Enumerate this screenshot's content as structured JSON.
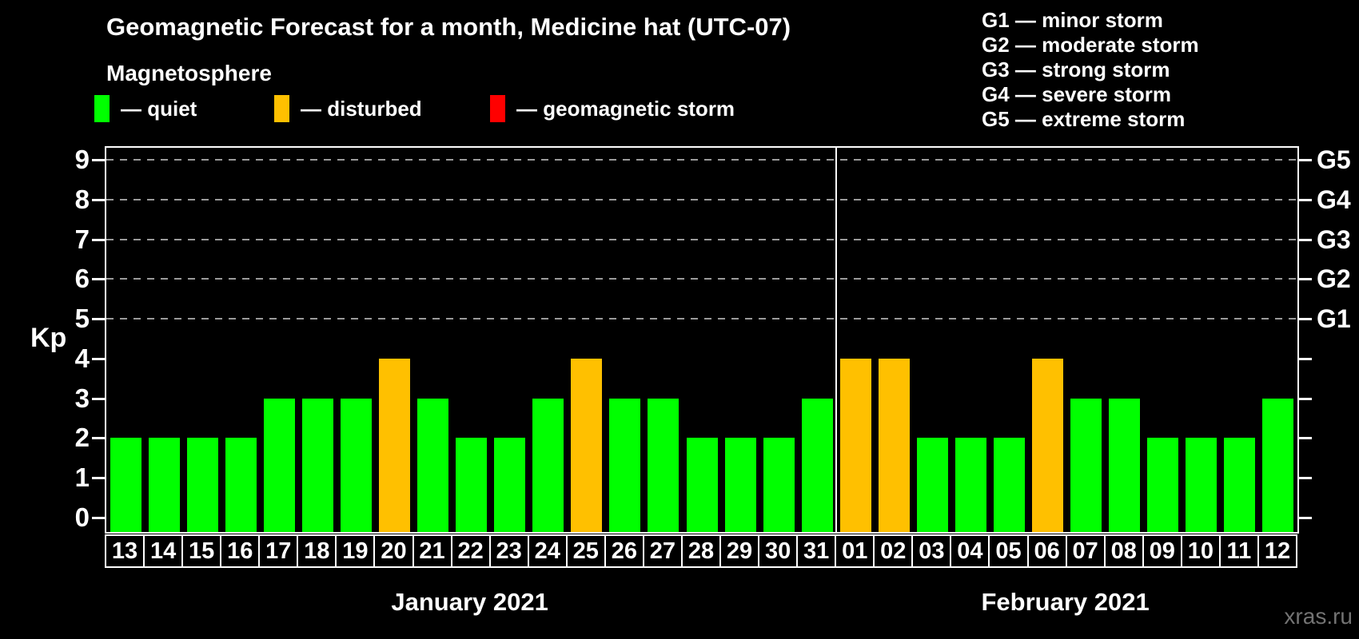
{
  "title": "Geomagnetic Forecast for a month, Medicine hat (UTC-07)",
  "subtitle": "Magnetosphere",
  "legend": {
    "items": [
      {
        "key": "quiet",
        "label": "— quiet",
        "color": "#00ff00"
      },
      {
        "key": "disturbed",
        "label": "— disturbed",
        "color": "#ffc000"
      },
      {
        "key": "storm",
        "label": "— geomagnetic storm",
        "color": "#ff0000"
      }
    ]
  },
  "g_legend": {
    "lines": [
      "G1 — minor storm",
      "G2 — moderate storm",
      "G3 — strong storm",
      "G4 — severe storm",
      "G5 — extreme storm"
    ]
  },
  "watermark": "xras.ru",
  "chart_data": {
    "type": "bar",
    "title": "Geomagnetic Forecast for a month, Medicine hat (UTC-07)",
    "ylabel": "Kp",
    "ylim": [
      0,
      9
    ],
    "y_ticks": [
      0,
      1,
      2,
      3,
      4,
      5,
      6,
      7,
      8,
      9
    ],
    "gridlines": [
      5,
      6,
      7,
      8,
      9
    ],
    "grid_style": "dashed",
    "right_axis": [
      {
        "value": 5,
        "label": "G1"
      },
      {
        "value": 6,
        "label": "G2"
      },
      {
        "value": 7,
        "label": "G3"
      },
      {
        "value": 8,
        "label": "G4"
      },
      {
        "value": 9,
        "label": "G5"
      }
    ],
    "categories": [
      "13",
      "14",
      "15",
      "16",
      "17",
      "18",
      "19",
      "20",
      "21",
      "22",
      "23",
      "24",
      "25",
      "26",
      "27",
      "28",
      "29",
      "30",
      "31",
      "01",
      "02",
      "03",
      "04",
      "05",
      "06",
      "07",
      "08",
      "09",
      "10",
      "11",
      "12"
    ],
    "values": [
      2,
      2,
      2,
      2,
      3,
      3,
      3,
      4,
      3,
      2,
      2,
      3,
      4,
      3,
      3,
      2,
      2,
      2,
      3,
      4,
      4,
      2,
      2,
      2,
      4,
      3,
      3,
      2,
      2,
      2,
      3
    ],
    "statuses": [
      "quiet",
      "quiet",
      "quiet",
      "quiet",
      "quiet",
      "quiet",
      "quiet",
      "disturbed",
      "quiet",
      "quiet",
      "quiet",
      "quiet",
      "disturbed",
      "quiet",
      "quiet",
      "quiet",
      "quiet",
      "quiet",
      "quiet",
      "disturbed",
      "disturbed",
      "quiet",
      "quiet",
      "quiet",
      "disturbed",
      "quiet",
      "quiet",
      "quiet",
      "quiet",
      "quiet",
      "quiet"
    ],
    "status_colors": {
      "quiet": "#00ff00",
      "disturbed": "#ffc000",
      "storm": "#ff0000"
    },
    "months": [
      {
        "label": "January 2021",
        "days": 19
      },
      {
        "label": "February 2021",
        "days": 12
      }
    ]
  }
}
